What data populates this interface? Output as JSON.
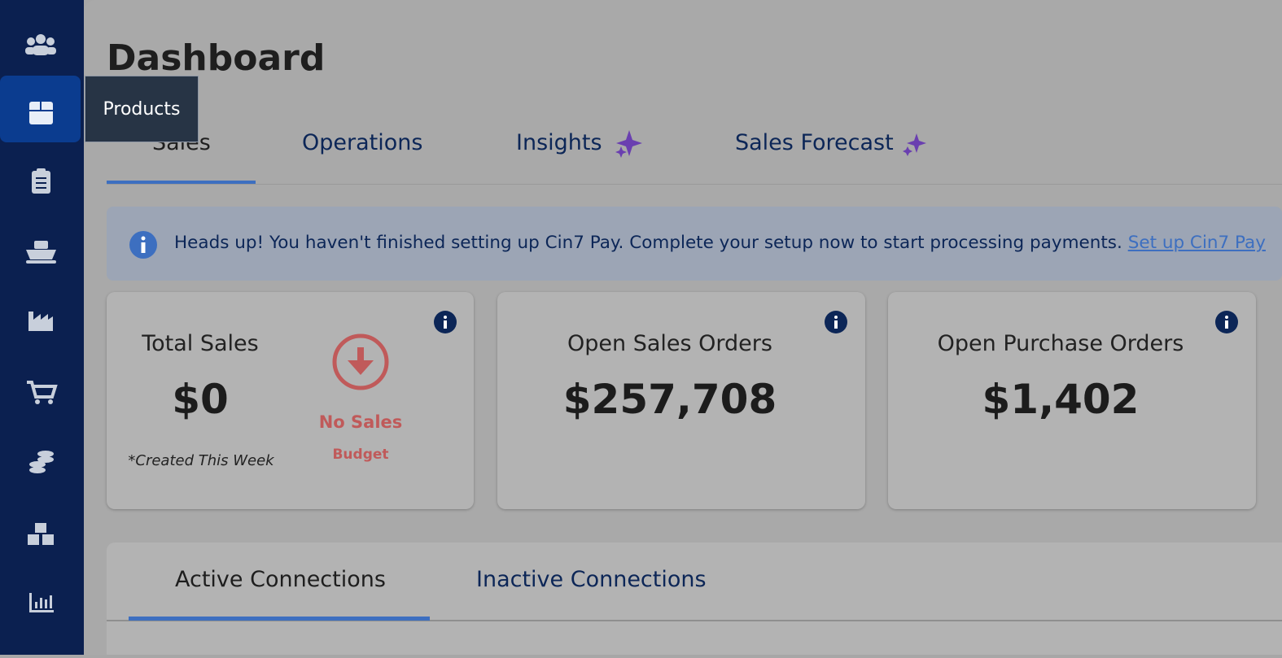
{
  "sidebar": {
    "tooltip": "Products"
  },
  "header": {
    "title": "Dashboard"
  },
  "tabs": [
    "Sales",
    "Operations",
    "Insights",
    "Sales Forecast"
  ],
  "banner": {
    "text": "Heads up! You haven't finished setting up Cin7 Pay. Complete your setup now to start processing payments.",
    "link": "Set up Cin7 Pay"
  },
  "cards": [
    {
      "title": "Total Sales",
      "value": "$0",
      "note": "*Created This Week",
      "status": "No Sales",
      "status_sub": "Budget"
    },
    {
      "title": "Open Sales Orders",
      "value": "$257,708"
    },
    {
      "title": "Open Purchase Orders",
      "value": "$1,402"
    }
  ],
  "connection_tabs": [
    "Active Connections",
    "Inactive Connections"
  ]
}
